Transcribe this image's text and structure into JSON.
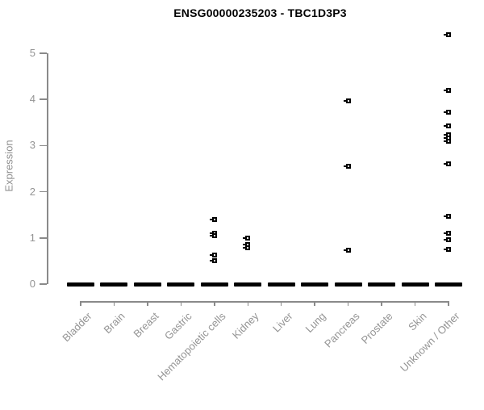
{
  "title": "ENSG00000235203 - TBC1D3P3",
  "chart_data": {
    "type": "scatter",
    "subtype": "strip-plot",
    "title": "ENSG00000235203 - TBC1D3P3",
    "xlabel": "",
    "ylabel": "Expression",
    "ylim": [
      0,
      5.5
    ],
    "yticks": [
      0,
      1,
      2,
      3,
      4,
      5
    ],
    "grid": false,
    "legend": false,
    "marker": "open-square-black",
    "colors": {
      "points": "#000000",
      "axis": "#8a8a8a",
      "tick_labels": "#949494",
      "title": "#000000",
      "background": "#ffffff"
    },
    "categories": [
      "Bladder",
      "Brain",
      "Breast",
      "Gastric",
      "Hematopoietic cells",
      "Kidney",
      "Liver",
      "Lung",
      "Pancreas",
      "Prostate",
      "Skin",
      "Unknown / Other"
    ],
    "series": [
      {
        "category": "Bladder",
        "zero_cluster": true,
        "points": []
      },
      {
        "category": "Brain",
        "zero_cluster": true,
        "points": []
      },
      {
        "category": "Breast",
        "zero_cluster": true,
        "points": []
      },
      {
        "category": "Gastric",
        "zero_cluster": true,
        "points": []
      },
      {
        "category": "Hematopoietic cells",
        "zero_cluster": true,
        "points": [
          1.39,
          1.1,
          1.05,
          0.63,
          0.5
        ]
      },
      {
        "category": "Kidney",
        "zero_cluster": true,
        "points": [
          1.0,
          0.86,
          0.78
        ]
      },
      {
        "category": "Liver",
        "zero_cluster": true,
        "points": []
      },
      {
        "category": "Lung",
        "zero_cluster": true,
        "points": []
      },
      {
        "category": "Pancreas",
        "zero_cluster": true,
        "points": [
          3.97,
          2.55,
          0.73
        ]
      },
      {
        "category": "Prostate",
        "zero_cluster": true,
        "points": []
      },
      {
        "category": "Skin",
        "zero_cluster": true,
        "points": []
      },
      {
        "category": "Unknown / Other",
        "zero_cluster": true,
        "points": [
          5.41,
          4.2,
          3.72,
          3.43,
          3.24,
          3.17,
          3.1,
          2.61,
          1.47,
          1.11,
          0.97,
          0.76
        ]
      }
    ]
  }
}
